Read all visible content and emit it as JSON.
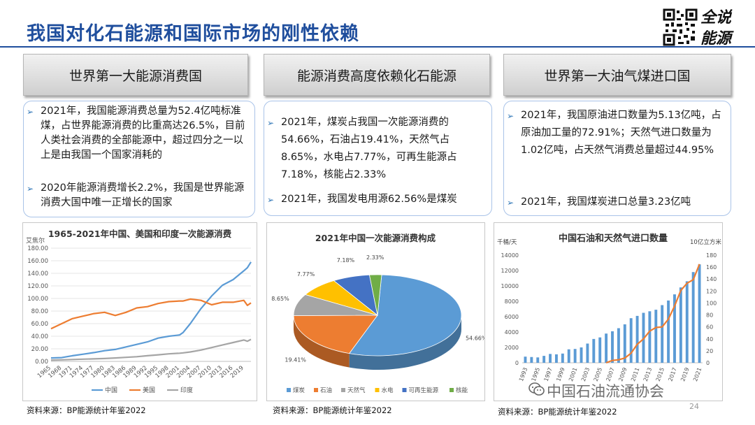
{
  "page": {
    "title": "我国对化石能源和国际市场的刚性依赖",
    "logo_text": [
      "全说",
      "能源"
    ],
    "watermark": "中国石油流通协会",
    "page_number": "24"
  },
  "sections": [
    {
      "heading": "世界第一大能源消费国",
      "bullets": [
        "2021年，我国能源消费总量为52.4亿吨标准煤，占世界能源消费的比重高达26.5%，目前人类社会消费的全部能源中，超过四分之一以上是由我国一个国家消耗的",
        "2020年能源消费增长2.2%，我国是世界能源消费大国中唯一正增长的国家"
      ],
      "source": "资料来源：BP能源统计年鉴2022"
    },
    {
      "heading": "能源消费高度依赖化石能源",
      "bullets": [
        "2021年，煤炭占我国一次能源消费的54.66%，石油占19.41%，天然气占8.65%，水电占7.77%，可再生能源占7.18%，核能占2.33%",
        "2021年，我国发电用源62.56%是煤炭"
      ],
      "source": "资料来源：BP能源统计年鉴2022"
    },
    {
      "heading": "世界第一大油气煤进口国",
      "bullets": [
        "2021年，我国原油进口数量为5.13亿吨，占原油加工量的72.91%；天然气进口数量为1.02亿吨，占天然气消费总量超过44.95%",
        "2021年，我国煤炭进口总量3.23亿吨"
      ],
      "source": "资料来源：BP能源统计年鉴2022"
    }
  ],
  "chart_data": [
    {
      "type": "line",
      "title": "1965-2021年中国、美国和印度一次能源消费",
      "ylabel": "艾焦尔",
      "ylim": [
        0,
        180
      ],
      "yticks": [
        "0.00",
        "20.00",
        "40.00",
        "60.00",
        "80.00",
        "100.00",
        "120.00",
        "140.00",
        "160.00",
        "180.00"
      ],
      "x_tick_labels": [
        "1965",
        "1968",
        "1971",
        "1974",
        "1977",
        "1980",
        "1983",
        "1986",
        "1989",
        "1992",
        "1995",
        "1998",
        "2001",
        "2004",
        "2007",
        "2010",
        "2013",
        "2016",
        "2019"
      ],
      "x": [
        1965,
        1968,
        1971,
        1974,
        1977,
        1980,
        1983,
        1986,
        1989,
        1992,
        1995,
        1998,
        2001,
        2002,
        2004,
        2007,
        2010,
        2013,
        2016,
        2019,
        2020,
        2021
      ],
      "series": [
        {
          "name": "中国",
          "color": "#5b9bd5",
          "values": [
            5.5,
            6,
            9,
            11.5,
            14,
            17,
            19,
            23,
            27,
            31,
            37,
            40,
            42,
            46,
            60,
            84,
            104,
            121,
            130,
            144,
            149,
            158
          ]
        },
        {
          "name": "美国",
          "color": "#ed7d31",
          "values": [
            52,
            60,
            68,
            72,
            76,
            78,
            73,
            78,
            85,
            87,
            92,
            95,
            96,
            96,
            99,
            97,
            90,
            94,
            94,
            97,
            89,
            93
          ]
        },
        {
          "name": "印度",
          "color": "#a5a5a5",
          "values": [
            2,
            2.5,
            3,
            3.5,
            4,
            4.5,
            5.5,
            6.5,
            7.5,
            9,
            10.5,
            12,
            13,
            13.5,
            15,
            18,
            22,
            26,
            30,
            34,
            32,
            35
          ]
        }
      ],
      "grid": true,
      "legend": "bottom"
    },
    {
      "type": "pie",
      "title": "2021年中国一次能源消费构成",
      "slices": [
        {
          "label": "煤炭",
          "value": 54.66,
          "display": "54.66%",
          "color": "#5b9bd5"
        },
        {
          "label": "石油",
          "value": 19.41,
          "display": "19.41%",
          "color": "#ed7d31"
        },
        {
          "label": "天然气",
          "value": 8.65,
          "display": "8.65%",
          "color": "#a5a5a5"
        },
        {
          "label": "水电",
          "value": 7.77,
          "display": "7.77%",
          "color": "#ffc000"
        },
        {
          "label": "可再生能源",
          "value": 7.18,
          "display": "7.18%",
          "color": "#4472c4"
        },
        {
          "label": "核能",
          "value": 2.33,
          "display": "2.33%",
          "color": "#70ad47"
        }
      ],
      "legend": "bottom"
    },
    {
      "type": "bar",
      "title": "中国石油和天然气进口数量",
      "ylabel_left": "千桶/天",
      "ylabel_right": "10亿立方米",
      "ylim_left": [
        0,
        14000
      ],
      "ylim_right": [
        0,
        180
      ],
      "yticks_left": [
        "0",
        "2000",
        "4000",
        "6000",
        "8000",
        "10000",
        "12000",
        "14000"
      ],
      "yticks_right": [
        "0",
        "20",
        "40",
        "60",
        "80",
        "100",
        "120",
        "140",
        "160",
        "180"
      ],
      "x_tick_labels": [
        "1993",
        "1995",
        "1997",
        "1999",
        "2001",
        "2003",
        "2005",
        "2007",
        "2009",
        "2011",
        "2013",
        "2015",
        "2017",
        "2019",
        "2021"
      ],
      "categories": [
        "1993",
        "1994",
        "1995",
        "1996",
        "1997",
        "1998",
        "1999",
        "2000",
        "2001",
        "2002",
        "2003",
        "2004",
        "2005",
        "2006",
        "2007",
        "2008",
        "2009",
        "2010",
        "2011",
        "2012",
        "2013",
        "2014",
        "2015",
        "2016",
        "2017",
        "2018",
        "2019",
        "2020",
        "2021"
      ],
      "series": [
        {
          "name": "石油进口",
          "kind": "bar",
          "axis": "left",
          "color": "#5b9bd5",
          "values": [
            800,
            750,
            700,
            900,
            1150,
            1100,
            1200,
            1750,
            1800,
            2000,
            2500,
            3100,
            3300,
            3800,
            4100,
            4500,
            5000,
            5800,
            6100,
            6500,
            6700,
            6900,
            7500,
            8100,
            8900,
            9800,
            10600,
            11800,
            12800
          ]
        },
        {
          "name": "天然气进口",
          "kind": "line",
          "axis": "right",
          "color": "#ed7d31",
          "values": [
            0,
            0,
            0,
            0,
            0,
            0,
            0,
            0,
            0,
            0,
            0,
            0,
            0,
            0,
            4,
            5,
            8,
            16,
            31,
            40,
            53,
            59,
            60,
            73,
            95,
            121,
            133,
            139,
            165
          ]
        }
      ]
    }
  ]
}
